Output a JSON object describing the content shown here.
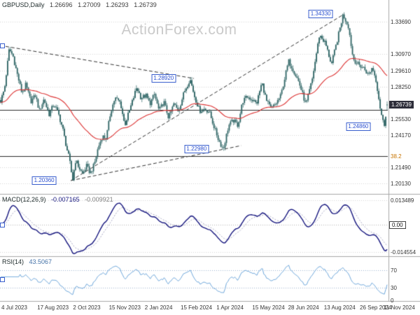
{
  "watermark": "ActionForex.com",
  "header": {
    "symbol": "GBPUSD,Daily",
    "open": "1.26696",
    "high": "1.27009",
    "low": "1.26293",
    "close": "1.26739"
  },
  "macd_header": {
    "label": "MACD(12,26,9)",
    "macd": "-0.007165",
    "signal": "-0.009921"
  },
  "rsi_header": {
    "label": "RSI(14)",
    "value": "43.5067"
  },
  "colors": {
    "background": "#ffffff",
    "candle": "#2d6464",
    "ma_line": "#dd3333",
    "macd_line": "#15157e",
    "macd_signal": "#a9a9c4",
    "rsi_line": "#6fa8dc",
    "annotation_blue": "#2a4fd0",
    "price_box_bg": "#2e2e3a",
    "fib_label": "#c77400",
    "grid": "#d6d6d6",
    "trendline": "#333333",
    "separator": "#a8a8a8",
    "level_line": "#2b2b2b",
    "watermark": "#cacaca",
    "axis_text": "#333333"
  },
  "chart_data": {
    "type": "candlestick",
    "symbol": "GBPUSD",
    "timeframe": "Daily",
    "last": {
      "open": 1.26696,
      "high": 1.27009,
      "low": 1.26293,
      "close": 1.26739
    },
    "x_labels": [
      "4 Jul 2023",
      "17 Aug 2023",
      "2 Oct 2023",
      "15 Nov 2023",
      "2 Jan 2024",
      "15 Feb 2024",
      "1 Apr 2024",
      "15 May 2024",
      "28 Jun 2024",
      "13 Aug 2024",
      "26 Sep 2024",
      "11 Nov 2024"
    ],
    "price_axis": {
      "min": 1.1925,
      "max": 1.3551,
      "ticks": [
        {
          "v": 1.3369,
          "label": "1.33690"
        },
        {
          "v": 1.3097,
          "label": "1.30970"
        },
        {
          "v": 1.2961,
          "label": "1.29610"
        },
        {
          "v": 1.2825,
          "label": "1.28250"
        },
        {
          "v": 1.2553,
          "label": "1.25530"
        },
        {
          "v": 1.2417,
          "label": "1.24170"
        },
        {
          "v": 1.2149,
          "label": "1.21490"
        },
        {
          "v": 1.2013,
          "label": "1.20130"
        }
      ],
      "current": {
        "value": 1.26739,
        "label": "1.26739"
      }
    },
    "main": {
      "annotations": [
        {
          "label": "1.34330",
          "price": 1.3433,
          "f_point": 0.886,
          "f_box": 0.827
        },
        {
          "label": "1.28920",
          "price": 1.2892,
          "f_point": 0.49,
          "f_box": 0.422
        },
        {
          "label": "1.22980",
          "price": 1.2298,
          "f_point": 0.576,
          "f_box": 0.507
        },
        {
          "label": "1.20360",
          "price": 1.2036,
          "f_point": 0.186,
          "f_box": 0.114
        },
        {
          "label": "1.24860",
          "price": 1.2486,
          "f_point": 0.992,
          "f_box": 0.924
        }
      ],
      "support_line": {
        "price": 1.263
      },
      "fib_line": {
        "price": 1.224,
        "label": "38.2"
      },
      "trendlines": [
        {
          "f1": 0.0,
          "p1": 1.317,
          "f2": 0.5,
          "p2": 1.2893
        },
        {
          "f1": 0.183,
          "p1": 1.2037,
          "f2": 0.888,
          "p2": 1.3434
        },
        {
          "f1": 0.183,
          "p1": 1.2037,
          "f2": 0.622,
          "p2": 1.233
        }
      ],
      "price_path": [
        [
          0.0,
          1.2705
        ],
        [
          0.01,
          1.281
        ],
        [
          0.022,
          1.314
        ],
        [
          0.032,
          1.308
        ],
        [
          0.042,
          1.294
        ],
        [
          0.055,
          1.277
        ],
        [
          0.065,
          1.284
        ],
        [
          0.078,
          1.27
        ],
        [
          0.09,
          1.275
        ],
        [
          0.1,
          1.262
        ],
        [
          0.112,
          1.272
        ],
        [
          0.125,
          1.259
        ],
        [
          0.138,
          1.268
        ],
        [
          0.15,
          1.259
        ],
        [
          0.16,
          1.248
        ],
        [
          0.17,
          1.232
        ],
        [
          0.178,
          1.221
        ],
        [
          0.186,
          1.204
        ],
        [
          0.194,
          1.221
        ],
        [
          0.202,
          1.215
        ],
        [
          0.212,
          1.209
        ],
        [
          0.222,
          1.216
        ],
        [
          0.232,
          1.21
        ],
        [
          0.242,
          1.217
        ],
        [
          0.252,
          1.231
        ],
        [
          0.263,
          1.241
        ],
        [
          0.273,
          1.239
        ],
        [
          0.285,
          1.262
        ],
        [
          0.296,
          1.273
        ],
        [
          0.31,
          1.269
        ],
        [
          0.321,
          1.25
        ],
        [
          0.335,
          1.264
        ],
        [
          0.352,
          1.282
        ],
        [
          0.363,
          1.273
        ],
        [
          0.376,
          1.275
        ],
        [
          0.386,
          1.268
        ],
        [
          0.398,
          1.276
        ],
        [
          0.41,
          1.262
        ],
        [
          0.422,
          1.27
        ],
        [
          0.435,
          1.256
        ],
        [
          0.448,
          1.268
        ],
        [
          0.46,
          1.262
        ],
        [
          0.475,
          1.278
        ],
        [
          0.49,
          1.289
        ],
        [
          0.502,
          1.274
        ],
        [
          0.515,
          1.262
        ],
        [
          0.528,
          1.264
        ],
        [
          0.54,
          1.261
        ],
        [
          0.555,
          1.246
        ],
        [
          0.565,
          1.237
        ],
        [
          0.576,
          1.23
        ],
        [
          0.59,
          1.25
        ],
        [
          0.602,
          1.254
        ],
        [
          0.614,
          1.25
        ],
        [
          0.626,
          1.27
        ],
        [
          0.638,
          1.274
        ],
        [
          0.65,
          1.272
        ],
        [
          0.662,
          1.268
        ],
        [
          0.676,
          1.286
        ],
        [
          0.688,
          1.27
        ],
        [
          0.7,
          1.264
        ],
        [
          0.712,
          1.268
        ],
        [
          0.725,
          1.275
        ],
        [
          0.745,
          1.304
        ],
        [
          0.758,
          1.296
        ],
        [
          0.772,
          1.286
        ],
        [
          0.79,
          1.267
        ],
        [
          0.806,
          1.288
        ],
        [
          0.825,
          1.326
        ],
        [
          0.84,
          1.319
        ],
        [
          0.856,
          1.301
        ],
        [
          0.87,
          1.32
        ],
        [
          0.886,
          1.343
        ],
        [
          0.9,
          1.333
        ],
        [
          0.912,
          1.306
        ],
        [
          0.925,
          1.301
        ],
        [
          0.94,
          1.298
        ],
        [
          0.952,
          1.292
        ],
        [
          0.962,
          1.299
        ],
        [
          0.972,
          1.287
        ],
        [
          0.983,
          1.263
        ],
        [
          0.992,
          1.249
        ],
        [
          1.0,
          1.2674
        ]
      ]
    },
    "macd": {
      "params": [
        12,
        26,
        9
      ],
      "current": {
        "macd": -0.007165,
        "signal": -0.009921
      },
      "range": [
        -0.0165,
        0.016
      ],
      "ticks": [
        {
          "v": 0.013489,
          "label": "0.013489"
        },
        {
          "v": -0.014554,
          "label": "-0.014554"
        }
      ],
      "zero_label": "0.00"
    },
    "rsi": {
      "period": 14,
      "current": 43.5067,
      "levels": [
        70,
        30
      ],
      "ticks": [
        {
          "v": 70,
          "label": "70"
        },
        {
          "v": 30,
          "label": "30"
        },
        {
          "v": 0,
          "label": "0"
        }
      ]
    }
  }
}
